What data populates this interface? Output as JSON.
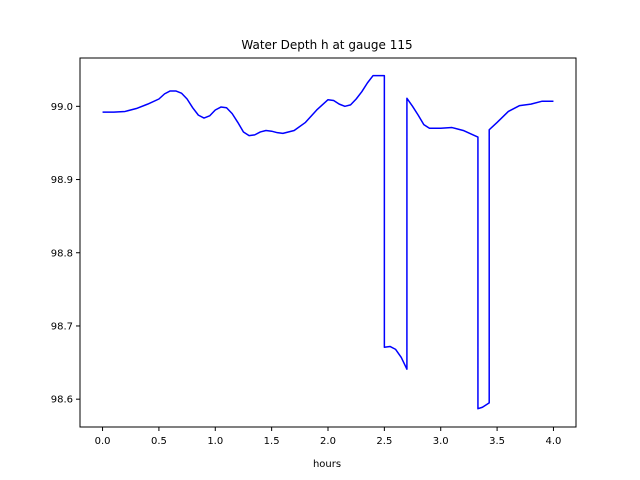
{
  "chart_data": {
    "type": "line",
    "title": "Water Depth h at gauge 115",
    "xlabel": "hours",
    "ylabel": "",
    "xlim": [
      -0.2,
      4.2
    ],
    "ylim": [
      98.562,
      99.066
    ],
    "xticks": [
      0.0,
      0.5,
      1.0,
      1.5,
      2.0,
      2.5,
      3.0,
      3.5,
      4.0
    ],
    "xtick_labels": [
      "0.0",
      "0.5",
      "1.0",
      "1.5",
      "2.0",
      "2.5",
      "3.0",
      "3.5",
      "4.0"
    ],
    "yticks": [
      98.6,
      98.7,
      98.8,
      98.9,
      99.0
    ],
    "ytick_labels": [
      "98.6",
      "98.7",
      "98.8",
      "98.9",
      "99.0"
    ],
    "grid": false,
    "legend": "none",
    "series": [
      {
        "color": "#0000ff",
        "x": [
          0.0,
          0.1,
          0.2,
          0.3,
          0.4,
          0.5,
          0.55,
          0.6,
          0.65,
          0.7,
          0.75,
          0.8,
          0.85,
          0.9,
          0.95,
          1.0,
          1.05,
          1.1,
          1.15,
          1.2,
          1.25,
          1.3,
          1.35,
          1.4,
          1.45,
          1.5,
          1.55,
          1.6,
          1.7,
          1.8,
          1.9,
          2.0,
          2.05,
          2.1,
          2.15,
          2.2,
          2.25,
          2.3,
          2.35,
          2.4,
          2.45,
          2.5,
          2.5001,
          2.55,
          2.6,
          2.65,
          2.7,
          2.7001,
          2.75,
          2.8,
          2.85,
          2.9,
          3.0,
          3.1,
          3.2,
          3.3,
          3.33,
          3.3301,
          3.37,
          3.43,
          3.4301,
          3.5,
          3.6,
          3.7,
          3.8,
          3.9,
          4.0
        ],
        "y": [
          98.992,
          98.992,
          98.993,
          98.997,
          99.003,
          99.01,
          99.017,
          99.021,
          99.021,
          99.018,
          99.01,
          98.998,
          98.988,
          98.984,
          98.987,
          98.995,
          98.999,
          98.998,
          98.99,
          98.978,
          98.965,
          98.96,
          98.961,
          98.965,
          98.967,
          98.966,
          98.964,
          98.963,
          98.967,
          98.978,
          98.995,
          99.009,
          99.008,
          99.003,
          99.0,
          99.002,
          99.01,
          99.02,
          99.032,
          99.042,
          99.042,
          99.042,
          98.671,
          98.672,
          98.668,
          98.657,
          98.641,
          99.011,
          99.0,
          98.988,
          98.975,
          98.97,
          98.97,
          98.971,
          98.967,
          98.96,
          98.958,
          98.587,
          98.589,
          98.595,
          98.968,
          98.978,
          98.993,
          99.001,
          99.003,
          99.007,
          99.007
        ]
      }
    ]
  }
}
